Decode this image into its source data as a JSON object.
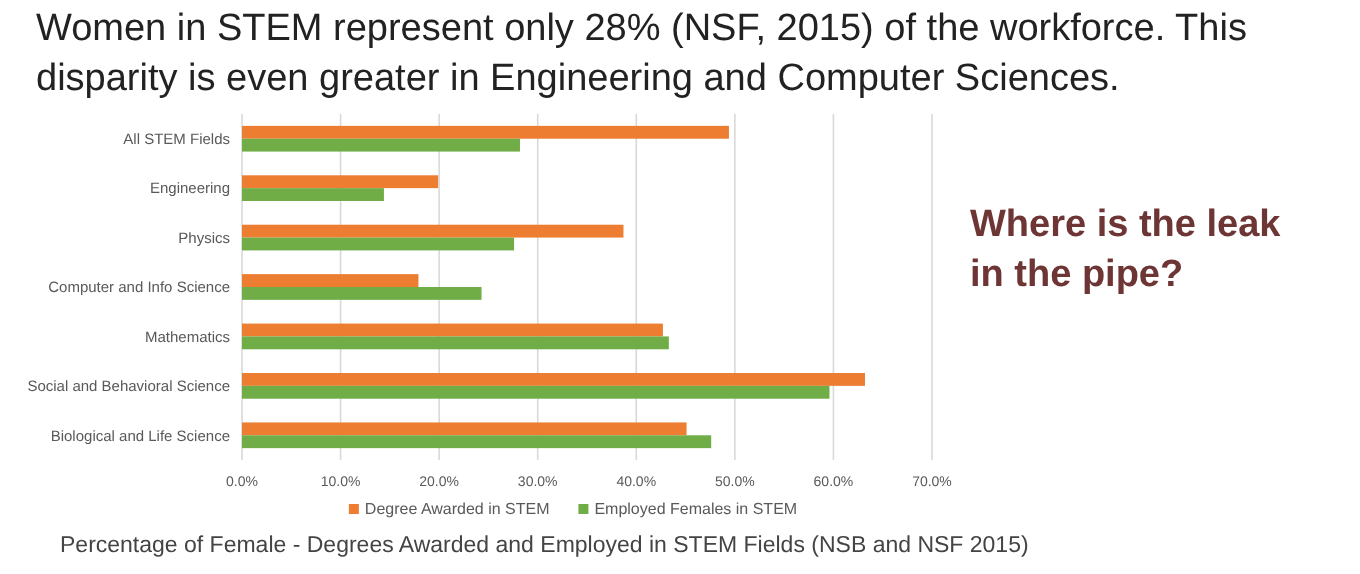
{
  "chart_data": {
    "type": "bar",
    "orientation": "horizontal",
    "title": "Women in STEM represent only 28% (NSF, 2015) of the workforce. This disparity is even greater in Engineering and Computer Sciences.",
    "categories": [
      "All STEM Fields",
      "Engineering",
      "Physics",
      "Computer and Info Science",
      "Mathematics",
      "Social and Behavioral Science",
      "Biological and Life Science"
    ],
    "series": [
      {
        "name": "Degree Awarded in STEM",
        "color": "#ed7d31",
        "values": [
          49.4,
          19.9,
          38.7,
          17.9,
          42.7,
          63.2,
          45.1
        ]
      },
      {
        "name": "Employed Females in STEM",
        "color": "#70ad47",
        "values": [
          28.2,
          14.4,
          27.6,
          24.3,
          43.3,
          59.6,
          47.6
        ]
      }
    ],
    "xlim": [
      0,
      70
    ],
    "xticks": [
      {
        "value": 0,
        "label": "0.0%"
      },
      {
        "value": 10,
        "label": "10.0%"
      },
      {
        "value": 20,
        "label": "20.0%"
      },
      {
        "value": 30,
        "label": "30.0%"
      },
      {
        "value": 40,
        "label": "40.0%"
      },
      {
        "value": 50,
        "label": "50.0%"
      },
      {
        "value": 60,
        "label": "60.0%"
      },
      {
        "value": 70,
        "label": "70.0%"
      }
    ],
    "grid": "x",
    "legend": "bottom",
    "annotations": [
      "Where is the leak in the pipe?",
      "Percentage of Female - Degrees Awarded and Employed in STEM Fields (NSB and NSF 2015)"
    ]
  }
}
